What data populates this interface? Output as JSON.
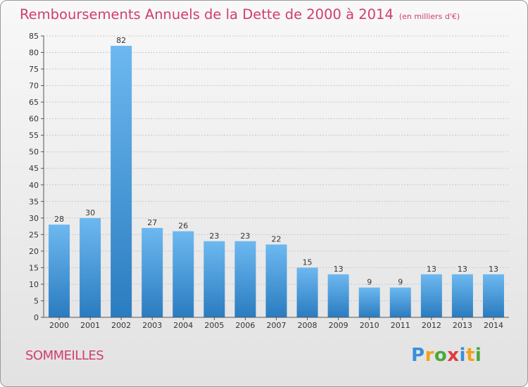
{
  "title": "Remboursements Annuels de la Dette de 2000 à 2014",
  "unit": "(en milliers d'€)",
  "commune": "SOMMEILLES",
  "logo": {
    "letters": [
      "P",
      "r",
      "o",
      "x",
      "i",
      "t",
      "i"
    ],
    "colors": [
      "#3a8fd8",
      "#f0a21e",
      "#4aa83e",
      "#e23c3c",
      "#3a8fd8",
      "#f0a21e",
      "#4aa83e"
    ]
  },
  "colors": {
    "title": "#d13c72",
    "bar_light": "#6db8f0",
    "bar_dark": "#2a7cc0"
  },
  "chart_data": {
    "type": "bar",
    "categories": [
      "2000",
      "2001",
      "2002",
      "2003",
      "2004",
      "2005",
      "2006",
      "2007",
      "2008",
      "2009",
      "2010",
      "2011",
      "2012",
      "2013",
      "2014"
    ],
    "values": [
      28,
      30,
      82,
      27,
      26,
      23,
      23,
      22,
      15,
      13,
      9,
      9,
      13,
      13,
      13
    ],
    "ylim": [
      0,
      85
    ],
    "yticks": [
      0,
      5,
      10,
      15,
      20,
      25,
      30,
      35,
      40,
      45,
      50,
      55,
      60,
      65,
      70,
      75,
      80,
      85
    ],
    "grid": true,
    "data_labels": true
  }
}
